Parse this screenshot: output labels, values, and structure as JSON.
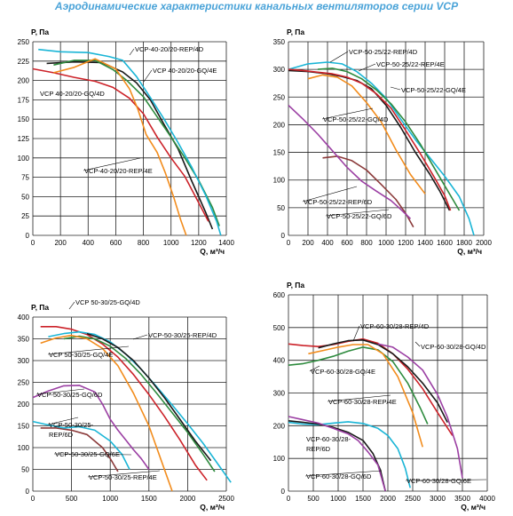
{
  "page": {
    "title": "Аэродинамические характеристики канальных вентиляторов серии VCP"
  },
  "chart_data": [
    {
      "type": "line",
      "ylabel": "P, Па",
      "xlabel": "Q, м³/ч",
      "xlim": [
        0,
        1400
      ],
      "ylim": [
        0,
        250
      ],
      "xticks": [
        0,
        200,
        400,
        600,
        800,
        1000,
        1200,
        1400
      ],
      "yticks": [
        0,
        25,
        50,
        75,
        100,
        125,
        150,
        175,
        200,
        225,
        250
      ],
      "grid": true,
      "series": [
        {
          "name": "VCP-40-20/20-REP/4D",
          "color": "#1a1a1a",
          "x": [
            100,
            300,
            500,
            650,
            750,
            850,
            950,
            1050,
            1150,
            1250,
            1300
          ],
          "y": [
            222,
            224,
            223,
            211,
            197,
            175,
            143,
            112,
            70,
            30,
            8
          ]
        },
        {
          "name": "VCP 40-20/20-GQ/4E",
          "color": "#2e8b3e",
          "x": [
            150,
            300,
            450,
            580,
            680,
            800,
            900,
            1000,
            1100,
            1200,
            1300,
            1350
          ],
          "y": [
            220,
            226,
            226,
            214,
            200,
            179,
            153,
            127,
            100,
            71,
            36,
            12
          ]
        },
        {
          "name": "VCP 40-20/20-GQ/4D",
          "color": "#cc2229",
          "x": [
            0,
            150,
            300,
            450,
            580,
            700,
            800,
            900,
            1000,
            1100,
            1200,
            1270
          ],
          "y": [
            215,
            210,
            204,
            199,
            191,
            177,
            157,
            127,
            100,
            76,
            42,
            18
          ]
        },
        {
          "name": "VCP-40-20/20-REP/4E",
          "color": "#f28c1c",
          "x": [
            150,
            300,
            450,
            600,
            700,
            760,
            820,
            900,
            960,
            1020,
            1070,
            1110
          ],
          "y": [
            210,
            217,
            228,
            215,
            189,
            163,
            130,
            107,
            80,
            49,
            20,
            0
          ]
        },
        {
          "name": "",
          "color": "#1ab5d6",
          "x": [
            40,
            200,
            400,
            550,
            650,
            750,
            850,
            950,
            1050,
            1150,
            1250,
            1330,
            1360
          ],
          "y": [
            240,
            237,
            236,
            231,
            226,
            205,
            178,
            150,
            120,
            88,
            52,
            18,
            0
          ]
        }
      ],
      "annotations": [
        {
          "text": "VCP-40-20/20-REP/4D"
        },
        {
          "text": "VCP 40-20/20-GQ/4E"
        },
        {
          "text": "VCP 40-20/20-GQ/4D"
        },
        {
          "text": "VCP-40-20/20-REP/4E"
        }
      ]
    },
    {
      "type": "line",
      "ylabel": "P, Па",
      "xlabel": "Q, м³/ч",
      "xlim": [
        0,
        2000
      ],
      "ylim": [
        0,
        350
      ],
      "xticks": [
        0,
        200,
        400,
        600,
        800,
        1000,
        1200,
        1400,
        1600,
        1800,
        2000
      ],
      "yticks": [
        0,
        50,
        100,
        150,
        200,
        250,
        300,
        350
      ],
      "grid": true,
      "series": [
        {
          "name": "VCP-50-25/22-REP/4D",
          "color": "#1ab5d6",
          "x": [
            0,
            200,
            400,
            550,
            700,
            850,
            1000,
            1150,
            1300,
            1450,
            1600,
            1750,
            1850,
            1900
          ],
          "y": [
            300,
            310,
            313,
            310,
            296,
            275,
            248,
            210,
            173,
            140,
            107,
            70,
            30,
            0
          ]
        },
        {
          "name": "VCP-50-25/22-REP/4E",
          "color": "#1a1a1a",
          "x": [
            0,
            200,
            400,
            550,
            700,
            850,
            1000,
            1150,
            1300,
            1450,
            1550,
            1650
          ],
          "y": [
            298,
            296,
            292,
            287,
            280,
            265,
            235,
            195,
            150,
            110,
            80,
            45
          ]
        },
        {
          "name": "VCP-50-25/22-GQ/4E",
          "color": "#2e8b3e",
          "x": [
            300,
            450,
            600,
            750,
            900,
            1050,
            1200,
            1350,
            1500,
            1650,
            1750
          ],
          "y": [
            300,
            302,
            296,
            283,
            263,
            238,
            205,
            165,
            120,
            75,
            45
          ]
        },
        {
          "name": "VCP-50-25/22-GQ/4D",
          "color": "#cc2229",
          "x": [
            0,
            150,
            300,
            450,
            600,
            750,
            900,
            1050,
            1200,
            1350,
            1500,
            1600,
            1660
          ],
          "y": [
            300,
            298,
            295,
            292,
            286,
            275,
            256,
            230,
            190,
            148,
            103,
            72,
            45
          ]
        },
        {
          "name": "",
          "color": "#f28c1c",
          "x": [
            200,
            350,
            500,
            650,
            800,
            950,
            1100,
            1250,
            1400
          ],
          "y": [
            283,
            290,
            286,
            270,
            240,
            205,
            155,
            110,
            75
          ]
        },
        {
          "name": "VCP-50-25/22-REP/6D",
          "color": "#8b3a3a",
          "x": [
            350,
            500,
            650,
            800,
            950,
            1100,
            1200,
            1280
          ],
          "y": [
            140,
            143,
            135,
            118,
            92,
            65,
            40,
            15
          ]
        },
        {
          "name": "VCP-50-25/22-GQ/6D",
          "color": "#9b3fa3",
          "x": [
            0,
            150,
            300,
            450,
            600,
            750,
            900,
            1050,
            1150,
            1250
          ],
          "y": [
            235,
            210,
            183,
            153,
            123,
            98,
            80,
            63,
            47,
            30
          ]
        }
      ],
      "annotations": [
        {
          "text": "VCP-50-25/22-REP/4D"
        },
        {
          "text": "VCP-50-25/22-REP/4E"
        },
        {
          "text": "VCP-50-25/22-GQ/4E"
        },
        {
          "text": "VCP-50-25/22-GQ/4D"
        },
        {
          "text": "VCP-50-25/22-REP/6D"
        },
        {
          "text": "VCP-50-25/22-GQ/6D"
        }
      ]
    },
    {
      "type": "line",
      "ylabel": "P, Па",
      "xlabel": "Q, м³/ч",
      "xlim": [
        0,
        2500
      ],
      "ylim": [
        0,
        400
      ],
      "xticks": [
        0,
        500,
        1000,
        1500,
        2000,
        2500
      ],
      "yticks": [
        0,
        50,
        100,
        150,
        200,
        250,
        300,
        350,
        400
      ],
      "grid": true,
      "series": [
        {
          "name": "VCP 50-30/25-GQ/4D",
          "color": "#cc2229",
          "x": [
            100,
            300,
            500,
            700,
            900,
            1100,
            1300,
            1500,
            1700,
            1900,
            2100,
            2250
          ],
          "y": [
            378,
            378,
            372,
            360,
            338,
            308,
            268,
            222,
            172,
            118,
            60,
            25
          ]
        },
        {
          "name": "VCP-50-30/25-REP/4D",
          "color": "#1ab5d6",
          "x": [
            200,
            400,
            600,
            800,
            1000,
            1200,
            1400,
            1600,
            1800,
            2000,
            2200,
            2400,
            2560
          ],
          "y": [
            355,
            362,
            366,
            360,
            343,
            315,
            280,
            240,
            198,
            155,
            110,
            60,
            20
          ]
        },
        {
          "name": "VCP 50-30/25-GQ/4E",
          "color": "#2e8b3e",
          "x": [
            400,
            600,
            800,
            1000,
            1200,
            1400,
            1600,
            1800,
            2000,
            2200,
            2350
          ],
          "y": [
            350,
            356,
            350,
            333,
            305,
            268,
            225,
            180,
            135,
            85,
            45
          ]
        },
        {
          "name": "",
          "color": "#1a1a1a",
          "x": [
            700,
            900,
            1100,
            1300,
            1500,
            1700,
            1900,
            2100,
            2300
          ],
          "y": [
            362,
            350,
            330,
            300,
            260,
            215,
            165,
            115,
            70
          ]
        },
        {
          "name": "VCP-50-30/25-REP/4E",
          "color": "#f28c1c",
          "x": [
            100,
            300,
            500,
            700,
            900,
            1100,
            1300,
            1500,
            1650,
            1800
          ],
          "y": [
            340,
            352,
            358,
            350,
            328,
            288,
            225,
            150,
            75,
            0
          ]
        },
        {
          "name": "VCP-50-30/25-GQ/6D",
          "color": "#9b3fa3",
          "x": [
            0,
            200,
            400,
            600,
            800,
            900,
            1000,
            1100,
            1200,
            1300,
            1400,
            1500
          ],
          "y": [
            215,
            230,
            242,
            243,
            228,
            200,
            165,
            140,
            118,
            95,
            75,
            50
          ]
        },
        {
          "name": "VCP-50-30/25-REP/6D",
          "color": "#8b3a3a",
          "x": [
            100,
            300,
            500,
            700,
            900,
            1000,
            1100
          ],
          "y": [
            145,
            145,
            140,
            130,
            100,
            75,
            45
          ]
        },
        {
          "name": "VCP-50-30/25-GQ/6E",
          "color": "#1ab5d6",
          "x": [
            0,
            200,
            400,
            600,
            800,
            1000,
            1150,
            1250
          ],
          "y": [
            160,
            152,
            145,
            148,
            140,
            115,
            85,
            50
          ]
        }
      ],
      "annotations": [
        {
          "text": "VCP 50-30/25-GQ/4D"
        },
        {
          "text": "VCP-50-30/25-REP/4D"
        },
        {
          "text": "VCP 50-30/25-GQ/4E"
        },
        {
          "text": "VCP-50-30/25-GQ/6D"
        },
        {
          "text": "VCP-50-30/25-"
        },
        {
          "text": "REP/6D"
        },
        {
          "text": "VCP-50-30/25-GQ/6E"
        },
        {
          "text": "VCP-50-30/25-REP/4E"
        }
      ]
    },
    {
      "type": "line",
      "ylabel": "P, Па",
      "xlabel": "Q, м³/ч",
      "xlim": [
        0,
        4000
      ],
      "ylim": [
        0,
        600
      ],
      "xticks": [
        0,
        500,
        1000,
        1500,
        2000,
        2500,
        3000,
        3500,
        4000
      ],
      "yticks": [
        0,
        100,
        200,
        300,
        400,
        500,
        600
      ],
      "grid": true,
      "series": [
        {
          "name": "VCP-60-30/28-REP/4D",
          "color": "#cc2229",
          "x": [
            0,
            300,
            600,
            900,
            1200,
            1500,
            1800,
            2100,
            2400,
            2700,
            3000,
            3300
          ],
          "y": [
            450,
            445,
            442,
            448,
            458,
            465,
            452,
            420,
            373,
            313,
            240,
            170
          ]
        },
        {
          "name": "VCP-60-30/28-GQ/4D",
          "color": "#1a1a1a",
          "x": [
            600,
            900,
            1200,
            1500,
            1800,
            2100,
            2400,
            2700,
            3000,
            3200
          ],
          "y": [
            438,
            450,
            460,
            462,
            448,
            420,
            380,
            330,
            270,
            210
          ]
        },
        {
          "name": "VCP-60-30/28-GQ/4E",
          "color": "#2e8b3e",
          "x": [
            0,
            300,
            600,
            900,
            1200,
            1500,
            1800,
            2100,
            2400,
            2650,
            2800
          ],
          "y": [
            385,
            390,
            400,
            412,
            428,
            440,
            432,
            396,
            330,
            255,
            205
          ]
        },
        {
          "name": "VCP-60-30/28-REP/4E",
          "color": "#f28c1c",
          "x": [
            400,
            700,
            1000,
            1300,
            1600,
            1900,
            2200,
            2500,
            2700
          ],
          "y": [
            420,
            430,
            440,
            448,
            448,
            420,
            350,
            240,
            135
          ]
        },
        {
          "name": "VCP-60-30/28-GQ/6E",
          "color": "#9b3fa3",
          "x": [
            1800,
            2100,
            2400,
            2700,
            3000,
            3200,
            3400,
            3500
          ],
          "y": [
            450,
            440,
            410,
            370,
            295,
            225,
            130,
            40
          ]
        },
        {
          "name": "",
          "color": "#1ab5d6",
          "x": [
            0,
            300,
            600,
            900,
            1200,
            1500,
            1800,
            2000,
            2200,
            2350,
            2450
          ],
          "y": [
            210,
            205,
            203,
            208,
            212,
            207,
            192,
            170,
            130,
            70,
            10
          ]
        },
        {
          "name": "VCP-60-30/28-REP/6D",
          "color": "#1a1a1a",
          "x": [
            0,
            300,
            600,
            900,
            1200,
            1500,
            1700,
            1850,
            1950
          ],
          "y": [
            215,
            210,
            205,
            195,
            180,
            155,
            115,
            65,
            0
          ]
        },
        {
          "name": "VCP-60-30/28-GQ/6D",
          "color": "#9b3fa3",
          "x": [
            0,
            300,
            600,
            900,
            1200,
            1400,
            1600,
            1800,
            1950
          ],
          "y": [
            228,
            218,
            208,
            192,
            175,
            155,
            120,
            80,
            0
          ]
        }
      ],
      "annotations": [
        {
          "text": "VCP-60-30/28-REP/4D"
        },
        {
          "text": "VCP-60-30/28-GQ/4D"
        },
        {
          "text": "VCP-60-30/28-GQ/4E"
        },
        {
          "text": "VCP-60-30/28-REP/4E"
        },
        {
          "text": "VCP-60-30/28-"
        },
        {
          "text": "REP/6D"
        },
        {
          "text": "VCP-60-30/28-GQ/6D"
        },
        {
          "text": "VCP-60-30/28-GQ/6E"
        }
      ]
    }
  ]
}
